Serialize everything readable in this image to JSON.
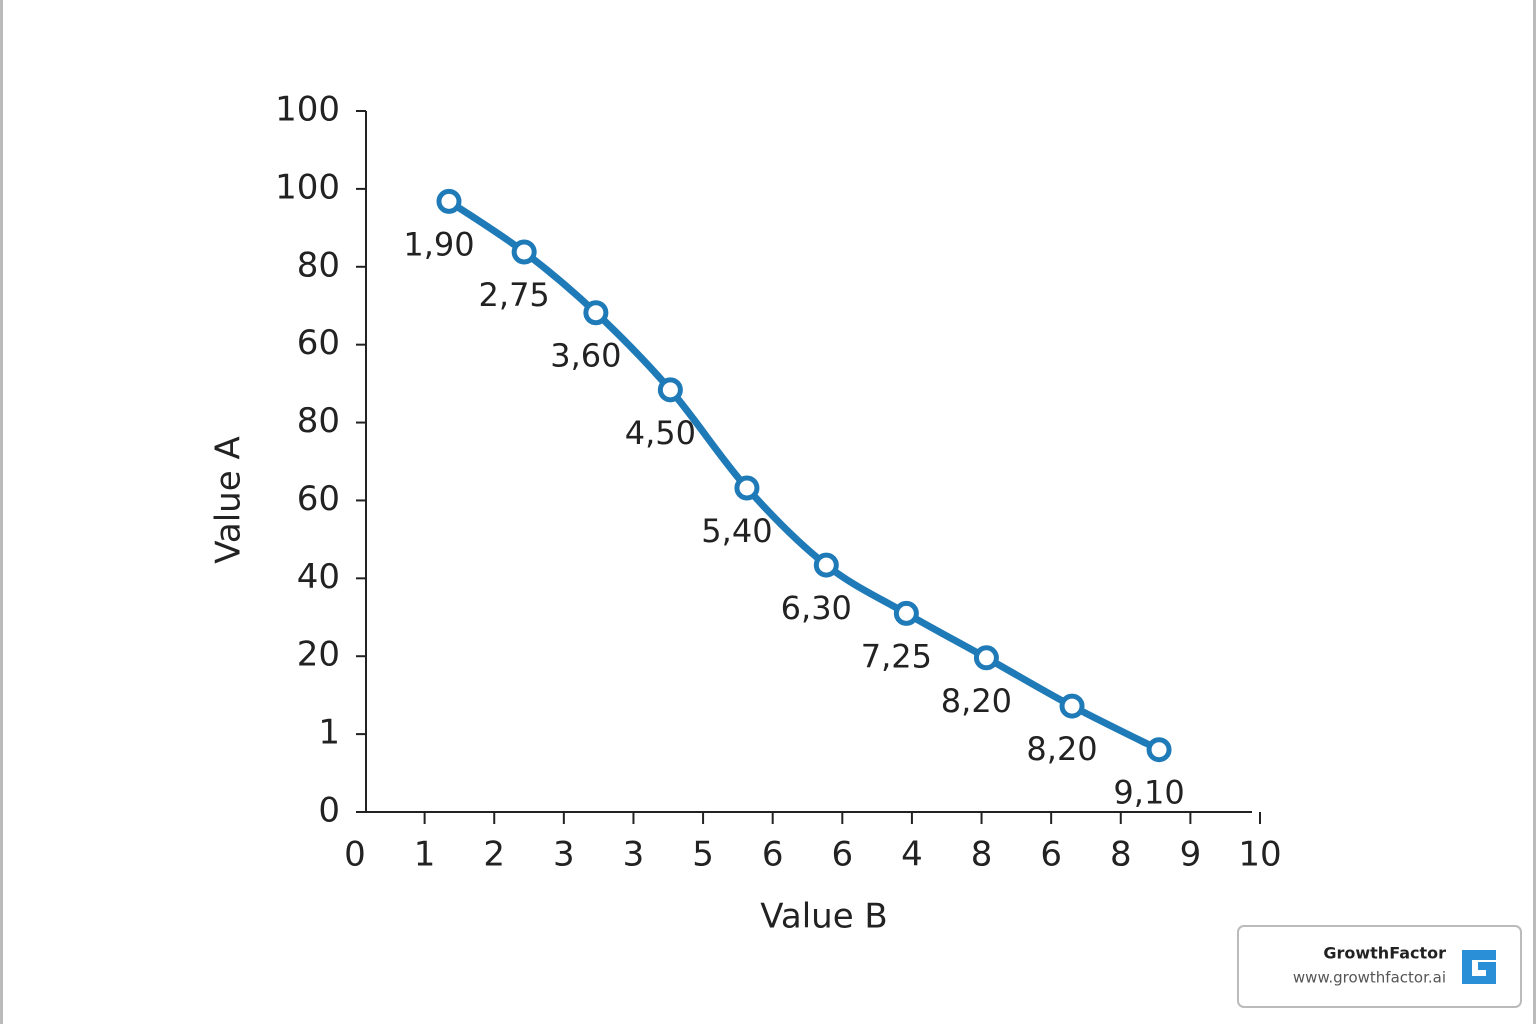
{
  "chart_data": {
    "type": "line",
    "x_label": "Value B",
    "y_label": "Value A",
    "xlim": [
      0,
      13
    ],
    "xticks": [
      0,
      1,
      2,
      3,
      {
        "value": 4,
        "label": "3"
      },
      {
        "value": 5,
        "label": "5"
      },
      {
        "value": 6,
        "label": "6"
      },
      {
        "value": 7,
        "label": "6"
      },
      {
        "value": 8,
        "label": "4"
      },
      {
        "value": 9,
        "label": "8"
      },
      {
        "value": 10,
        "label": "6"
      },
      {
        "value": 11,
        "label": "8"
      },
      {
        "value": 12,
        "label": "9"
      },
      {
        "value": 13,
        "label": "10"
      }
    ],
    "ylim": [
      0,
      9
    ],
    "yticks": [
      0,
      {
        "value": 1,
        "label": "1"
      },
      {
        "value": 2,
        "label": "20"
      },
      {
        "value": 3,
        "label": "40"
      },
      {
        "value": 4,
        "label": "60"
      },
      {
        "value": 5,
        "label": "80"
      },
      {
        "value": 6,
        "label": "60"
      },
      {
        "value": 7,
        "label": "80"
      },
      {
        "value": 8,
        "label": "100"
      },
      {
        "value": 9,
        "label": "100"
      }
    ],
    "series": [
      {
        "color": "#1f7ab8",
        "x": [
          1.35,
          2.43,
          3.46,
          4.53,
          5.63,
          6.77,
          7.92,
          9.07,
          10.3,
          11.55
        ],
        "values": [
          7.84,
          7.19,
          6.41,
          5.42,
          4.16,
          3.17,
          2.55,
          1.98,
          1.36,
          0.8
        ],
        "point_labels": [
          "1,90",
          "2,75",
          "3,60",
          "4,50",
          "5,40",
          "6,30",
          "7,25",
          "8,20",
          "8,20",
          "9,10"
        ]
      }
    ]
  },
  "watermark": {
    "name": "GrowthFactor",
    "url": "www.growthfactor.ai"
  }
}
